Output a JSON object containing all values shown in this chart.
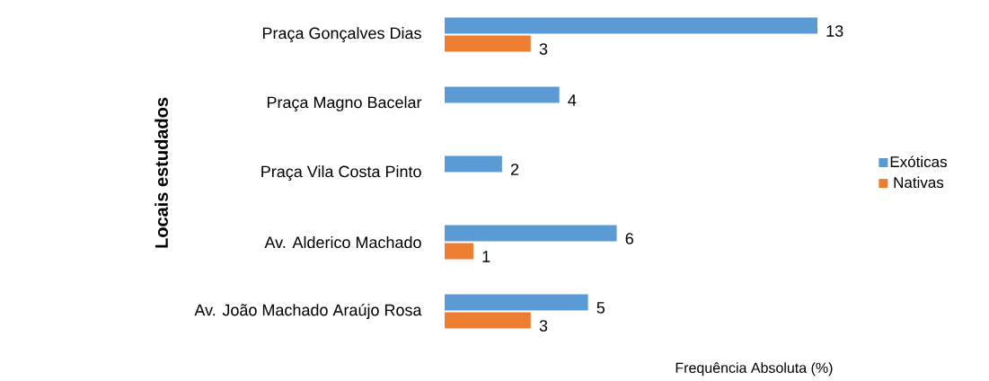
{
  "chart_data": {
    "type": "bar",
    "orientation": "horizontal",
    "xlabel": "Frequência Absoluta (%)",
    "ylabel": "Locais estudados",
    "categories": [
      "Praça Gonçalves Dias",
      "Praça Magno Bacelar",
      "Praça Vila Costa Pinto",
      "Av. Alderico Machado",
      "Av. João Machado Araújo Rosa"
    ],
    "series": [
      {
        "name": "Exóticas",
        "color": "#5b9bd5",
        "values": [
          13,
          4,
          2,
          6,
          5
        ]
      },
      {
        "name": "Nativas",
        "color": "#ed7d31",
        "values": [
          3,
          null,
          null,
          1,
          3
        ]
      }
    ],
    "data_labels": true,
    "legend": "right"
  }
}
